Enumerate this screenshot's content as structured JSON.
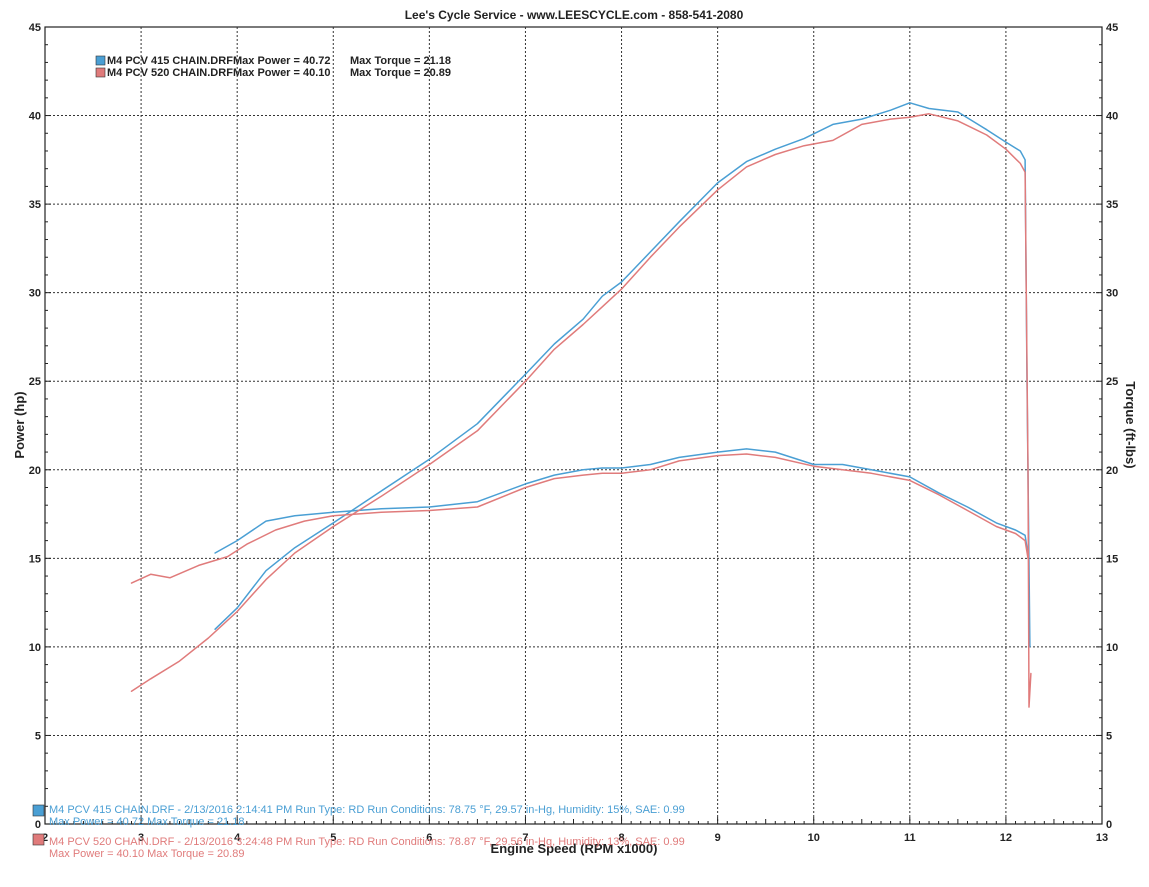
{
  "chart_data": {
    "type": "line",
    "title": "Lee's Cycle Service - www.LEESCYCLE.com - 858-541-2080",
    "xlabel": "Engine Speed (RPM x1000)",
    "ylabel": "Power (hp)",
    "y2label": "Torque (ft-lbs)",
    "xlim": [
      2,
      13
    ],
    "ylim": [
      0,
      45
    ],
    "y2lim": [
      0,
      45
    ],
    "x_ticks": [
      2,
      3,
      4,
      5,
      6,
      7,
      8,
      9,
      10,
      11,
      12,
      13
    ],
    "y_ticks": [
      0,
      5,
      10,
      15,
      20,
      25,
      30,
      35,
      40,
      45
    ],
    "grid": true,
    "legend": [
      {
        "name": "M4 PCV 415 CHAIN.DRF",
        "power_text": "Max Power = 40.72",
        "torque_text": "Max Torque = 21.18",
        "color": "#4a9fd4"
      },
      {
        "name": "M4 PCV 520 CHAIN.DRF",
        "power_text": "Max Power = 40.10",
        "torque_text": "Max Torque = 20.89",
        "color": "#e07b7b"
      }
    ],
    "series": [
      {
        "name": "M4 PCV 415 CHAIN.DRF",
        "metric": "power",
        "color": "#4a9fd4",
        "x": [
          3.77,
          4.0,
          4.3,
          4.6,
          5.0,
          5.5,
          6.0,
          6.5,
          7.0,
          7.3,
          7.6,
          7.8,
          8.0,
          8.3,
          8.6,
          9.0,
          9.3,
          9.6,
          9.9,
          10.2,
          10.5,
          10.8,
          11.0,
          11.2,
          11.5,
          11.8,
          12.0,
          12.15,
          12.2,
          12.22,
          12.25
        ],
        "y": [
          11.0,
          12.2,
          14.3,
          15.6,
          17.0,
          18.8,
          20.6,
          22.6,
          25.4,
          27.1,
          28.5,
          29.8,
          30.6,
          32.3,
          34.0,
          36.2,
          37.4,
          38.1,
          38.7,
          39.5,
          39.8,
          40.3,
          40.72,
          40.4,
          40.2,
          39.2,
          38.5,
          38.0,
          37.5,
          25.0,
          10.0
        ]
      },
      {
        "name": "M4 PCV 415 CHAIN.DRF",
        "metric": "torque",
        "color": "#4a9fd4",
        "x": [
          3.77,
          4.0,
          4.3,
          4.6,
          5.0,
          5.5,
          6.0,
          6.5,
          7.0,
          7.3,
          7.6,
          7.8,
          8.0,
          8.3,
          8.6,
          9.0,
          9.3,
          9.6,
          10.0,
          10.3,
          10.6,
          11.0,
          11.3,
          11.6,
          11.9,
          12.1,
          12.2,
          12.23
        ],
        "y": [
          15.3,
          16.0,
          17.1,
          17.4,
          17.6,
          17.8,
          17.9,
          18.2,
          19.2,
          19.7,
          20.0,
          20.1,
          20.1,
          20.3,
          20.7,
          21.0,
          21.18,
          21.0,
          20.3,
          20.3,
          20.0,
          19.6,
          18.7,
          17.9,
          17.0,
          16.6,
          16.3,
          15.2
        ]
      },
      {
        "name": "M4 PCV 520 CHAIN.DRF",
        "metric": "power",
        "color": "#e07b7b",
        "x": [
          2.9,
          3.1,
          3.4,
          3.7,
          4.0,
          4.3,
          4.6,
          5.0,
          5.5,
          6.0,
          6.5,
          7.0,
          7.3,
          7.6,
          7.8,
          8.0,
          8.3,
          8.6,
          9.0,
          9.3,
          9.6,
          9.9,
          10.2,
          10.5,
          10.8,
          11.0,
          11.2,
          11.5,
          11.8,
          12.0,
          12.15,
          12.2,
          12.23,
          12.24,
          12.26
        ],
        "y": [
          7.5,
          8.2,
          9.2,
          10.5,
          12.0,
          13.8,
          15.3,
          16.8,
          18.5,
          20.3,
          22.2,
          25.0,
          26.8,
          28.2,
          29.2,
          30.2,
          32.0,
          33.7,
          35.8,
          37.1,
          37.8,
          38.3,
          38.6,
          39.5,
          39.8,
          39.9,
          40.1,
          39.7,
          38.9,
          38.1,
          37.3,
          36.8,
          20.0,
          6.6,
          8.5
        ]
      },
      {
        "name": "M4 PCV 520 CHAIN.DRF",
        "metric": "torque",
        "color": "#e07b7b",
        "x": [
          2.9,
          3.1,
          3.3,
          3.6,
          3.9,
          4.1,
          4.4,
          4.7,
          5.0,
          5.5,
          6.0,
          6.5,
          7.0,
          7.3,
          7.6,
          7.8,
          8.0,
          8.3,
          8.6,
          9.0,
          9.3,
          9.6,
          10.0,
          10.3,
          10.6,
          11.0,
          11.3,
          11.6,
          11.9,
          12.1,
          12.2,
          12.23
        ],
        "y": [
          13.6,
          14.1,
          13.9,
          14.6,
          15.1,
          15.8,
          16.6,
          17.1,
          17.4,
          17.6,
          17.7,
          17.9,
          19.0,
          19.5,
          19.7,
          19.8,
          19.8,
          20.0,
          20.5,
          20.8,
          20.89,
          20.7,
          20.2,
          20.0,
          19.8,
          19.4,
          18.6,
          17.7,
          16.8,
          16.4,
          16.0,
          15.0
        ]
      }
    ]
  },
  "footer": {
    "run1": {
      "line1": "M4 PCV 415 CHAIN.DRF - 2/13/2016 2:14:41 PM  Run Type: RD  Run Conditions: 78.75 °F, 29.57 in-Hg, Humidity: 15%, SAE: 0.99",
      "line2": "Max Power = 40.72  Max Torque = 21.18",
      "color": "#4a9fd4"
    },
    "run2": {
      "line1": "M4 PCV 520 CHAIN.DRF - 2/13/2016 3:24:48 PM  Run Type: RD  Run Conditions: 78.87 °F, 29.56 in-Hg, Humidity: 13%, SAE: 0.99",
      "line2": "Max Power = 40.10  Max Torque = 20.89",
      "color": "#e07b7b"
    }
  }
}
